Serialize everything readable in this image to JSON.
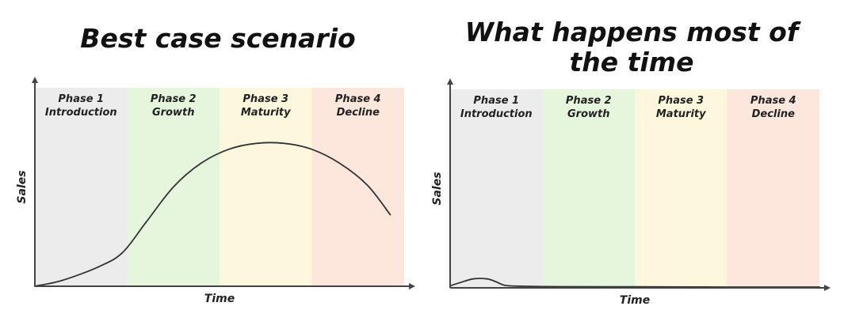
{
  "chart_data": [
    {
      "type": "line",
      "title": "Best case scenario",
      "xlabel": "Time",
      "ylabel": "Sales",
      "phases": [
        {
          "line1": "Phase 1",
          "line2": "Introduction",
          "color": "#ececec"
        },
        {
          "line1": "Phase 2",
          "line2": "Growth",
          "color": "#e5f6dd"
        },
        {
          "line1": "Phase 3",
          "line2": "Maturity",
          "color": "#fdf7de"
        },
        {
          "line1": "Phase 4",
          "line2": "Decline",
          "color": "#fde6dc"
        }
      ],
      "xlim": [
        0,
        4
      ],
      "ylim": [
        0,
        1
      ],
      "series": [
        {
          "x": [
            0,
            0.3,
            0.7,
            0.95,
            1.2,
            1.5,
            1.8,
            2.1,
            2.4,
            2.7,
            3.0,
            3.3,
            3.6,
            3.85
          ],
          "y": [
            0,
            0.03,
            0.1,
            0.17,
            0.32,
            0.5,
            0.62,
            0.69,
            0.72,
            0.72,
            0.69,
            0.62,
            0.51,
            0.36
          ]
        }
      ]
    },
    {
      "type": "line",
      "title": "What happens most of the time",
      "xlabel": "Time",
      "ylabel": "Sales",
      "phases": [
        {
          "line1": "Phase 1",
          "line2": "Introduction",
          "color": "#ececec"
        },
        {
          "line1": "Phase 2",
          "line2": "Growth",
          "color": "#e5f6dd"
        },
        {
          "line1": "Phase 3",
          "line2": "Maturity",
          "color": "#fdf7de"
        },
        {
          "line1": "Phase 4",
          "line2": "Decline",
          "color": "#fde6dc"
        }
      ],
      "xlim": [
        0,
        4
      ],
      "ylim": [
        0,
        1
      ],
      "series": [
        {
          "x": [
            0,
            0.1,
            0.25,
            0.4,
            0.5,
            0.6,
            0.8,
            1.2,
            2.0,
            3.0,
            4.0
          ],
          "y": [
            0.01,
            0.025,
            0.045,
            0.045,
            0.03,
            0.012,
            0.008,
            0.006,
            0.005,
            0.004,
            0.004
          ]
        }
      ]
    }
  ]
}
